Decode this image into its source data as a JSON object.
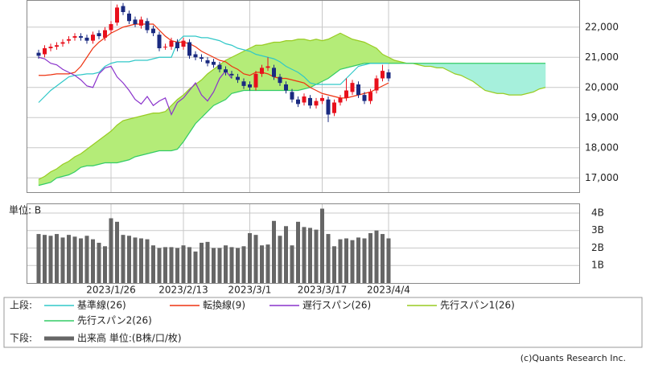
{
  "chart_data": [
    {
      "type": "candlestick",
      "categories": [
        null,
        null,
        null,
        null,
        null,
        null,
        null,
        null,
        null,
        null,
        null,
        null,
        "2023/1/26",
        null,
        null,
        null,
        null,
        null,
        null,
        null,
        null,
        null,
        null,
        null,
        "2023/2/13",
        null,
        null,
        null,
        null,
        null,
        null,
        null,
        null,
        null,
        null,
        "2023/3/1",
        null,
        null,
        null,
        null,
        null,
        null,
        null,
        null,
        null,
        null,
        null,
        "2023/3/17",
        null,
        null,
        null,
        null,
        null,
        null,
        null,
        null,
        null,
        null,
        "2023/4/4",
        null,
        null,
        null,
        null,
        null,
        null,
        null,
        null,
        null,
        null,
        null,
        null,
        null,
        null,
        null,
        null,
        null,
        null,
        null,
        null,
        null,
        null,
        null,
        null,
        null,
        null
      ],
      "open": [
        21150,
        21100,
        21300,
        21350,
        21450,
        21550,
        21650,
        21700,
        21650,
        21550,
        21800,
        21650,
        21900,
        22150,
        22700,
        22450,
        22250,
        22050,
        22200,
        21950,
        21750,
        21350,
        21350,
        21500,
        21350,
        21500,
        21100,
        21000,
        20900,
        20850,
        20750,
        20600,
        20450,
        20350,
        20200,
        20100,
        20000,
        20450,
        20650,
        20650,
        20350,
        20100,
        19850,
        19600,
        19500,
        19650,
        19400,
        19550,
        19600,
        19150,
        19500,
        19650,
        19850,
        20100,
        19750,
        19550,
        19900,
        20300,
        20500,
        null,
        null,
        null,
        null,
        null,
        null,
        null,
        null,
        null,
        null,
        null,
        null,
        null,
        null,
        null,
        null,
        null,
        null,
        null,
        null,
        null,
        null,
        null,
        null,
        null,
        null
      ],
      "high": [
        21250,
        21400,
        21450,
        21500,
        21600,
        21700,
        21800,
        21800,
        21750,
        21850,
        21900,
        22000,
        22200,
        22750,
        22800,
        22550,
        22350,
        22350,
        22300,
        22050,
        21850,
        21450,
        21650,
        21600,
        21650,
        21600,
        21200,
        21100,
        21000,
        20950,
        20850,
        20700,
        20550,
        20450,
        20300,
        20200,
        20550,
        20750,
        21000,
        20750,
        20450,
        20200,
        19950,
        19700,
        19800,
        19750,
        19650,
        19750,
        19700,
        19600,
        19750,
        20300,
        20250,
        20200,
        19850,
        19950,
        20400,
        20750,
        20600,
        null,
        null,
        null,
        null,
        null,
        null,
        null,
        null,
        null,
        null,
        null,
        null,
        null,
        null,
        null,
        null,
        null,
        null,
        null,
        null,
        null,
        null,
        null,
        null,
        null,
        null
      ],
      "low": [
        20950,
        21000,
        21200,
        21250,
        21350,
        21450,
        21550,
        21550,
        21450,
        21450,
        21600,
        21550,
        21800,
        22050,
        22400,
        22100,
        22000,
        21950,
        21800,
        21700,
        21200,
        21250,
        21250,
        21200,
        21250,
        20950,
        20900,
        20850,
        20700,
        20650,
        20500,
        20400,
        20300,
        20150,
        19950,
        19900,
        19900,
        20350,
        20550,
        20250,
        20050,
        19800,
        19500,
        19350,
        19400,
        19300,
        19300,
        19450,
        18850,
        19050,
        19400,
        19550,
        19750,
        19650,
        19450,
        19450,
        19800,
        20200,
        20200,
        null,
        null,
        null,
        null,
        null,
        null,
        null,
        null,
        null,
        null,
        null,
        null,
        null,
        null,
        null,
        null,
        null,
        null,
        null,
        null,
        null,
        null,
        null,
        null,
        null,
        null
      ],
      "close": [
        21050,
        21300,
        21350,
        21400,
        21500,
        21600,
        21700,
        21650,
        21550,
        21750,
        21700,
        21900,
        22100,
        22650,
        22500,
        22200,
        22100,
        22250,
        21900,
        21800,
        21300,
        21350,
        21550,
        21300,
        21550,
        21050,
        21000,
        20950,
        20800,
        20750,
        20600,
        20500,
        20400,
        20250,
        20050,
        20000,
        20450,
        20650,
        20700,
        20350,
        20150,
        19900,
        19600,
        19450,
        19700,
        19400,
        19550,
        19650,
        19100,
        19500,
        19650,
        19900,
        20150,
        19750,
        19550,
        19850,
        20300,
        20550,
        20300,
        null,
        null,
        null,
        null,
        null,
        null,
        null,
        null,
        null,
        null,
        null,
        null,
        null,
        null,
        null,
        null,
        null,
        null,
        null,
        null,
        null,
        null,
        null,
        null,
        null,
        null
      ],
      "up_color": "#e8101c",
      "down_color": "#1a2a80",
      "series": [
        {
          "name": "基準線(26)",
          "color": "#30c8c8",
          "values": [
            19500,
            19700,
            19900,
            20050,
            20200,
            20350,
            20400,
            20420,
            20450,
            20450,
            20500,
            20700,
            20800,
            20850,
            20850,
            20850,
            20900,
            20900,
            20900,
            20950,
            21000,
            21000,
            21000,
            21500,
            21700,
            21700,
            21700,
            21650,
            21650,
            21600,
            21550,
            21450,
            21400,
            21300,
            21250,
            21200,
            21100,
            21050,
            21000,
            20950,
            20850,
            20700,
            20600,
            20500,
            20350,
            20150,
            20100,
            20100,
            20100,
            20100,
            20100,
            20300,
            20500,
            20700,
            20750,
            20800,
            20800,
            20800,
            20800,
            null,
            null,
            null,
            null,
            null,
            null,
            null,
            null,
            null,
            null,
            null,
            null,
            null,
            null,
            null,
            null,
            null,
            null,
            null,
            null,
            null,
            null,
            null,
            null,
            null,
            null
          ]
        },
        {
          "name": "転換線(9)",
          "color": "#ee3311",
          "values": [
            20400,
            20400,
            20420,
            20450,
            20450,
            20450,
            20500,
            20700,
            21000,
            21300,
            21500,
            21650,
            21800,
            21900,
            22000,
            22050,
            22100,
            22100,
            22100,
            22100,
            21900,
            21700,
            21550,
            21500,
            21500,
            21450,
            21350,
            21200,
            21100,
            21000,
            20900,
            20850,
            20700,
            20600,
            20450,
            20400,
            20500,
            20500,
            20450,
            20350,
            20300,
            20300,
            20250,
            20200,
            20150,
            20000,
            19900,
            19800,
            19750,
            19700,
            19650,
            19650,
            19700,
            19750,
            19800,
            19850,
            19950,
            20050,
            20150,
            null,
            null,
            null,
            null,
            null,
            null,
            null,
            null,
            null,
            null,
            null,
            null,
            null,
            null,
            null,
            null,
            null,
            null,
            null,
            null,
            null,
            null,
            null,
            null,
            null,
            null
          ]
        },
        {
          "name": "遅行スパン(26)",
          "color": "#8a33cc",
          "values": [
            21000,
            20950,
            20800,
            20750,
            20600,
            20500,
            20400,
            20250,
            20050,
            20000,
            20450,
            20650,
            20700,
            20350,
            20150,
            19900,
            19600,
            19450,
            19700,
            19400,
            19550,
            19650,
            19100,
            19500,
            19650,
            19900,
            20150,
            19750,
            19550,
            19850,
            20300,
            20550,
            20300,
            null,
            null,
            null,
            null,
            null,
            null,
            null,
            null,
            null,
            null,
            null,
            null,
            null,
            null,
            null,
            null,
            null,
            null,
            null,
            null,
            null,
            null,
            null,
            null,
            null,
            null,
            null,
            null,
            null,
            null,
            null,
            null,
            null,
            null,
            null,
            null,
            null,
            null,
            null,
            null,
            null,
            null,
            null,
            null,
            null,
            null,
            null,
            null,
            null,
            null,
            null,
            null
          ]
        },
        {
          "name": "先行スパン1(26)",
          "color": "#99cc22",
          "values": [
            16950,
            17050,
            17200,
            17300,
            17450,
            17550,
            17700,
            17800,
            17950,
            18100,
            18250,
            18400,
            18550,
            18750,
            18900,
            18950,
            19000,
            19050,
            19100,
            19150,
            19150,
            19200,
            19400,
            19600,
            19750,
            19950,
            20100,
            20250,
            20450,
            20600,
            20750,
            20900,
            21000,
            21100,
            21200,
            21300,
            21400,
            21400,
            21450,
            21500,
            21500,
            21550,
            21550,
            21600,
            21600,
            21550,
            21600,
            21550,
            21600,
            21700,
            21800,
            21700,
            21600,
            21550,
            21500,
            21400,
            21300,
            21100,
            21000,
            20900,
            20850,
            20800,
            20800,
            20750,
            20700,
            20700,
            20650,
            20650,
            20550,
            20450,
            20400,
            20300,
            20200,
            20050,
            19900,
            19850,
            19800,
            19800,
            19750,
            19750,
            19750,
            19800,
            19850,
            19950,
            20000
          ]
        },
        {
          "name": "先行スパン2(26)",
          "color": "#33cc66",
          "values": [
            16750,
            16800,
            16850,
            17000,
            17050,
            17100,
            17200,
            17350,
            17400,
            17400,
            17450,
            17500,
            17500,
            17500,
            17550,
            17600,
            17700,
            17750,
            17800,
            17850,
            17900,
            17900,
            17900,
            17950,
            18200,
            18500,
            18800,
            19000,
            19200,
            19400,
            19500,
            19600,
            19800,
            19850,
            19900,
            19900,
            19900,
            19900,
            19900,
            19900,
            19900,
            19900,
            19900,
            19900,
            19950,
            20000,
            20100,
            20200,
            20300,
            20450,
            20600,
            20650,
            20700,
            20750,
            20800,
            20800,
            20800,
            20800,
            20800,
            20800,
            20800,
            20800,
            20800,
            20800,
            20800,
            20800,
            20800,
            20800,
            20800,
            20800,
            20800,
            20800,
            20800,
            20800,
            20800,
            20800,
            20800,
            20800,
            20800,
            20800,
            20800,
            20800,
            20800,
            20800,
            20800
          ]
        }
      ],
      "cloud_colors": [
        "#b4ec78",
        "#a6f0dc"
      ],
      "ylim": [
        16500,
        22900
      ],
      "yticks": [
        {
          "value": 17000,
          "label": "17,000"
        },
        {
          "value": 18000,
          "label": "18,000"
        },
        {
          "value": 19000,
          "label": "19,000"
        },
        {
          "value": 20000,
          "label": "20,000"
        },
        {
          "value": 21000,
          "label": "21,000"
        },
        {
          "value": 22000,
          "label": "22,000"
        }
      ],
      "grid": true,
      "legend_title": "上段:"
    },
    {
      "type": "bar",
      "unit_label": "単位: B",
      "name": "出来高 単位:(B株/口/枚)",
      "color": "#666666",
      "values": [
        2.8,
        2.75,
        2.7,
        2.8,
        2.6,
        2.75,
        2.65,
        2.55,
        2.7,
        2.5,
        2.3,
        2.1,
        3.7,
        3.5,
        2.75,
        2.7,
        2.6,
        2.55,
        2.5,
        2.15,
        2.0,
        2.05,
        2.05,
        2.0,
        2.15,
        2.05,
        1.8,
        2.3,
        2.35,
        2.0,
        2.0,
        2.15,
        2.05,
        2.0,
        2.1,
        2.85,
        2.75,
        2.15,
        2.2,
        3.55,
        2.7,
        3.25,
        2.15,
        3.5,
        3.2,
        3.15,
        3.05,
        4.25,
        2.8,
        2.1,
        2.5,
        2.55,
        2.45,
        2.6,
        2.55,
        2.85,
        3.0,
        2.8,
        2.55,
        null,
        null,
        null,
        null,
        null,
        null,
        null,
        null,
        null,
        null,
        null,
        null,
        null,
        null,
        null,
        null,
        null,
        null,
        null,
        null,
        null,
        null,
        null,
        null,
        null,
        null
      ],
      "ylim": [
        0,
        4.55
      ],
      "yticks": [
        {
          "value": 1,
          "label": "1B"
        },
        {
          "value": 2,
          "label": "2B"
        },
        {
          "value": 3,
          "label": "3B"
        },
        {
          "value": 4,
          "label": "4B"
        }
      ],
      "grid": true,
      "legend_title": "下段:"
    }
  ],
  "credit": "(c)Quants Research Inc."
}
